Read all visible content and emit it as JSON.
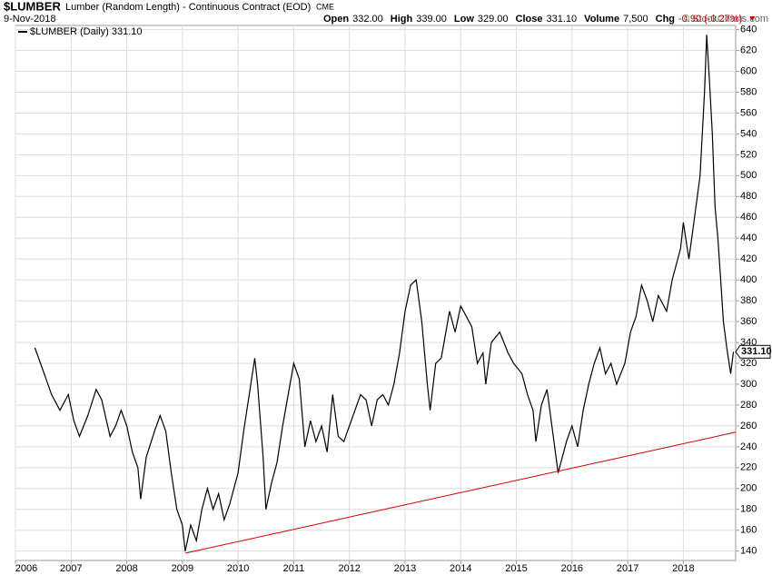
{
  "header": {
    "symbol": "$LUMBER",
    "name": "Lumber (Random Length) - Continuous Contract (EOD)",
    "exchange": "CME",
    "date": "9-Nov-2018",
    "copyright": "© StockCharts.com",
    "stats": [
      {
        "label": "Open",
        "value": "332.00"
      },
      {
        "label": "High",
        "value": "339.00"
      },
      {
        "label": "Low",
        "value": "329.00"
      },
      {
        "label": "Close",
        "value": "331.10"
      },
      {
        "label": "Volume",
        "value": "7,500"
      },
      {
        "label": "Chg",
        "value": "-0.90 (-0.27%)"
      }
    ]
  },
  "chart_data": {
    "type": "line",
    "x": [
      2006.35,
      2006.45,
      2006.55,
      2006.65,
      2006.8,
      2006.95,
      2007.05,
      2007.15,
      2007.3,
      2007.45,
      2007.55,
      2007.7,
      2007.8,
      2007.9,
      2008.0,
      2008.1,
      2008.2,
      2008.25,
      2008.35,
      2008.5,
      2008.6,
      2008.7,
      2008.8,
      2008.9,
      2009.0,
      2009.05,
      2009.15,
      2009.25,
      2009.35,
      2009.45,
      2009.55,
      2009.65,
      2009.75,
      2009.85,
      2010.0,
      2010.1,
      2010.2,
      2010.3,
      2010.35,
      2010.45,
      2010.5,
      2010.6,
      2010.7,
      2010.8,
      2010.9,
      2011.0,
      2011.1,
      2011.2,
      2011.3,
      2011.4,
      2011.5,
      2011.6,
      2011.7,
      2011.8,
      2011.9,
      2012.0,
      2012.1,
      2012.2,
      2012.3,
      2012.4,
      2012.5,
      2012.6,
      2012.7,
      2012.8,
      2012.9,
      2013.0,
      2013.1,
      2013.2,
      2013.3,
      2013.4,
      2013.45,
      2013.55,
      2013.65,
      2013.8,
      2013.9,
      2014.0,
      2014.1,
      2014.2,
      2014.3,
      2014.4,
      2014.45,
      2014.55,
      2014.7,
      2014.85,
      2014.95,
      2015.1,
      2015.2,
      2015.3,
      2015.35,
      2015.45,
      2015.55,
      2015.65,
      2015.75,
      2015.9,
      2016.0,
      2016.1,
      2016.2,
      2016.3,
      2016.4,
      2016.5,
      2016.6,
      2016.7,
      2016.8,
      2016.95,
      2017.05,
      2017.15,
      2017.25,
      2017.35,
      2017.45,
      2017.55,
      2017.7,
      2017.8,
      2017.95,
      2018.0,
      2018.1,
      2018.2,
      2018.3,
      2018.38,
      2018.42,
      2018.47,
      2018.52,
      2018.57,
      2018.62,
      2018.67,
      2018.72,
      2018.78,
      2018.85,
      2018.9
    ],
    "series": [
      {
        "name": "$LUMBER (Daily) 331.10",
        "color": "#000000",
        "values": [
          335,
          320,
          305,
          290,
          275,
          290,
          265,
          250,
          270,
          295,
          285,
          250,
          260,
          275,
          260,
          235,
          220,
          190,
          230,
          255,
          270,
          255,
          215,
          180,
          165,
          140,
          165,
          150,
          180,
          200,
          180,
          195,
          170,
          185,
          215,
          255,
          290,
          325,
          300,
          230,
          180,
          205,
          225,
          260,
          290,
          320,
          305,
          240,
          265,
          245,
          260,
          235,
          290,
          250,
          245,
          260,
          275,
          290,
          285,
          260,
          285,
          290,
          280,
          300,
          330,
          370,
          395,
          400,
          360,
          300,
          275,
          320,
          325,
          370,
          350,
          375,
          365,
          355,
          320,
          330,
          300,
          340,
          350,
          330,
          320,
          310,
          290,
          275,
          245,
          280,
          295,
          255,
          215,
          245,
          260,
          240,
          275,
          300,
          320,
          335,
          310,
          320,
          300,
          320,
          350,
          365,
          395,
          380,
          360,
          385,
          370,
          400,
          430,
          455,
          420,
          460,
          500,
          580,
          635,
          590,
          540,
          470,
          440,
          400,
          360,
          335,
          310,
          331.1
        ]
      }
    ],
    "last_value_label": "331.10",
    "trendline": {
      "x": [
        2009.05,
        2018.94
      ],
      "values": [
        138,
        254
      ],
      "color": "#cc0000"
    },
    "xlim": [
      2006,
      2018.94
    ],
    "xticks": [
      2006,
      2007,
      2008,
      2009,
      2010,
      2011,
      2012,
      2013,
      2014,
      2015,
      2016,
      2017,
      2018
    ],
    "ylim": [
      131,
      644
    ],
    "yticks": [
      140,
      160,
      180,
      200,
      220,
      240,
      260,
      280,
      300,
      320,
      340,
      360,
      380,
      400,
      420,
      440,
      460,
      480,
      500,
      520,
      540,
      560,
      580,
      600,
      620,
      640
    ],
    "grid": true
  }
}
